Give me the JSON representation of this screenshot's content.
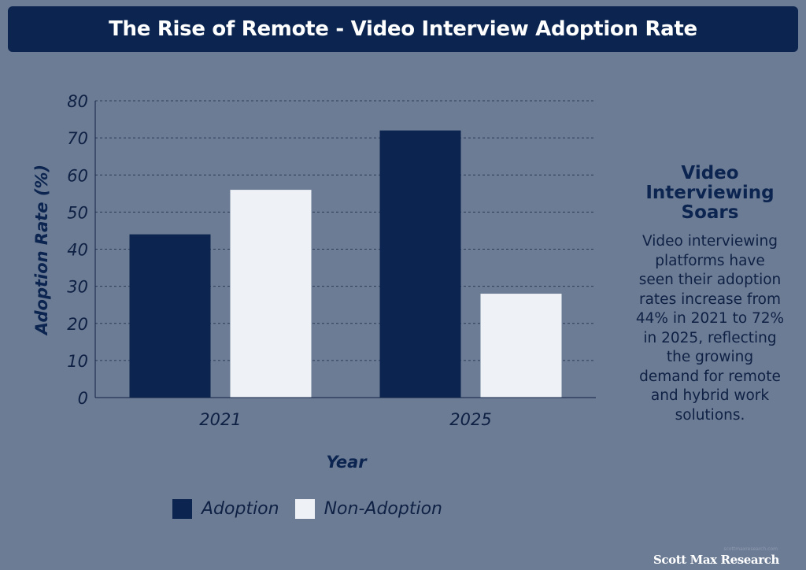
{
  "header": {
    "title": "The Rise of Remote - Video Interview Adoption Rate"
  },
  "chart_data": {
    "type": "bar",
    "categories": [
      "2021",
      "2025"
    ],
    "series": [
      {
        "name": "Adoption",
        "values": [
          44,
          72
        ],
        "color": "#0b2550"
      },
      {
        "name": "Non-Adoption",
        "values": [
          56,
          28
        ],
        "color": "#eef2f6"
      }
    ],
    "xlabel": "Year",
    "ylabel": "Adoption Rate (%)",
    "ylim": [
      0,
      80
    ],
    "yticks": [
      "0",
      "10",
      "20",
      "30",
      "40",
      "50",
      "60",
      "70",
      "80"
    ],
    "grid": true,
    "legend_position": "bottom"
  },
  "sidebar": {
    "heading_lines": [
      "Video",
      "Interviewing",
      "Soars"
    ],
    "body_lines": [
      "Video interviewing",
      "platforms have",
      "seen their adoption",
      "rates increase from",
      "44% in 2021 to 72%",
      "in 2025, reflecting",
      "the growing",
      "demand for remote",
      "and hybrid work",
      "solutions."
    ]
  },
  "footer": {
    "credit_small": "scottmaxresearch.com",
    "credit": "Scott Max Research"
  },
  "colors": {
    "background": "#6d7c95",
    "title_bar": "#0b2550",
    "grid": "#2b3a57"
  }
}
